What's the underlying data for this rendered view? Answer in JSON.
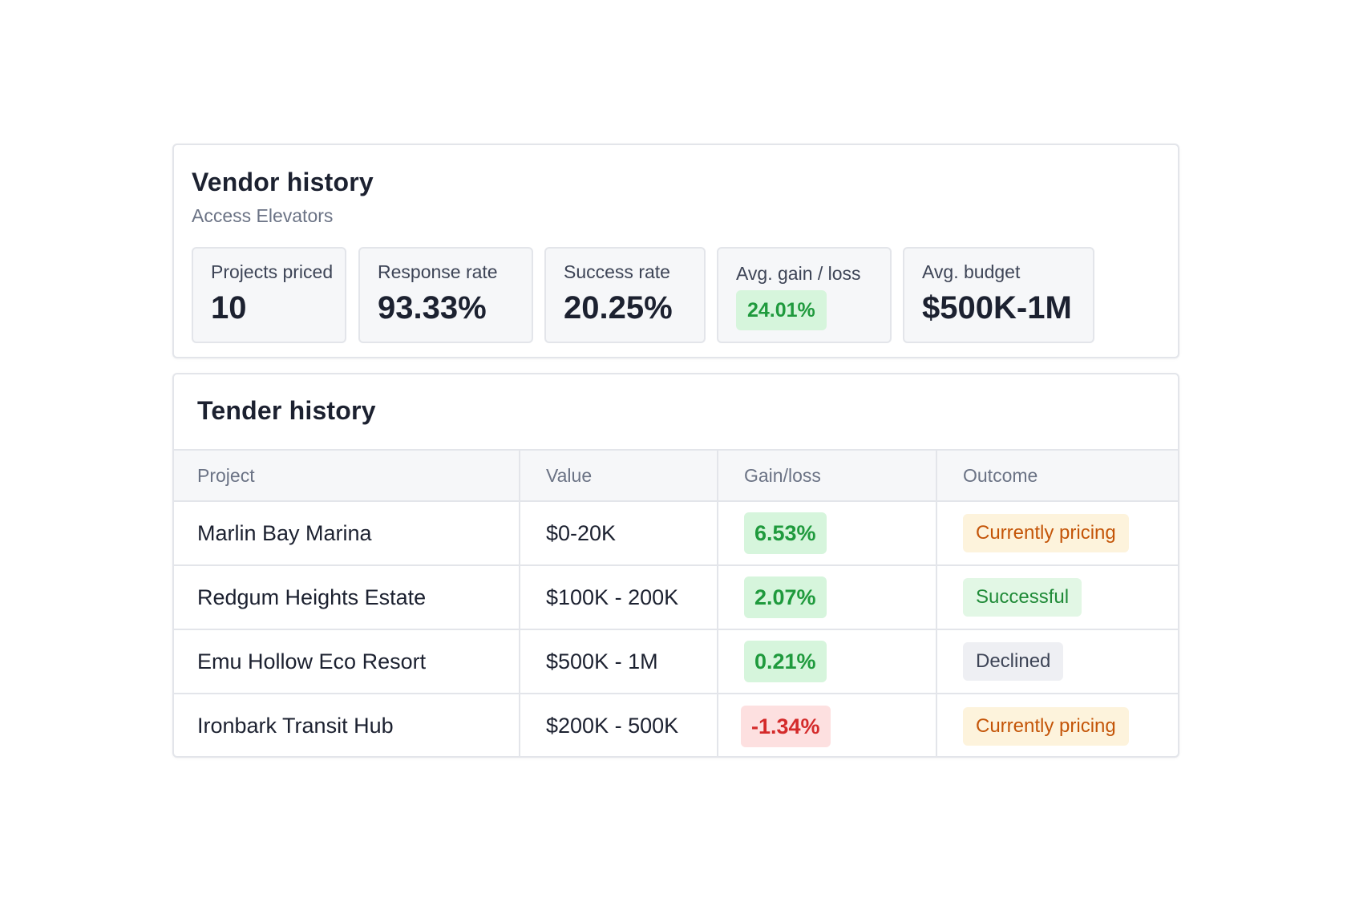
{
  "vendor": {
    "title": "Vendor history",
    "subtitle": "Access Elevators",
    "stats": [
      {
        "label": "Projects priced",
        "value": "10"
      },
      {
        "label": "Response rate",
        "value": "93.33%"
      },
      {
        "label": "Success rate",
        "value": "20.25%"
      },
      {
        "label": "Avg. gain / loss",
        "value": "24.01%",
        "tone": "positive"
      },
      {
        "label": "Avg. budget",
        "value": "$500K-1M"
      }
    ]
  },
  "tender": {
    "title": "Tender history",
    "columns": [
      "Project",
      "Value",
      "Gain/loss",
      "Outcome"
    ],
    "rows": [
      {
        "project": "Marlin Bay Marina",
        "value": "$0-20K",
        "gain": "6.53%",
        "gain_tone": "positive",
        "outcome": "Currently pricing",
        "outcome_status": "pricing"
      },
      {
        "project": "Redgum Heights Estate",
        "value": "$100K - 200K",
        "gain": "2.07%",
        "gain_tone": "positive",
        "outcome": "Successful",
        "outcome_status": "success"
      },
      {
        "project": "Emu Hollow Eco Resort",
        "value": "$500K - 1M",
        "gain": "0.21%",
        "gain_tone": "positive",
        "outcome": "Declined",
        "outcome_status": "declined"
      },
      {
        "project": "Ironbark Transit Hub",
        "value": "$200K - 500K",
        "gain": "-1.34%",
        "gain_tone": "negative",
        "outcome": "Currently pricing",
        "outcome_status": "pricing"
      }
    ]
  },
  "colors": {
    "positive_bg": "#d6f5dc",
    "positive_text": "#1f9a3d",
    "negative_bg": "#fde0e0",
    "negative_text": "#d42b2b",
    "pricing_bg": "#fdf3dc",
    "pricing_text": "#c45508",
    "success_bg": "#e2f7e5",
    "success_text": "#1f8a37",
    "declined_bg": "#eeeff3",
    "declined_text": "#3d4456"
  }
}
